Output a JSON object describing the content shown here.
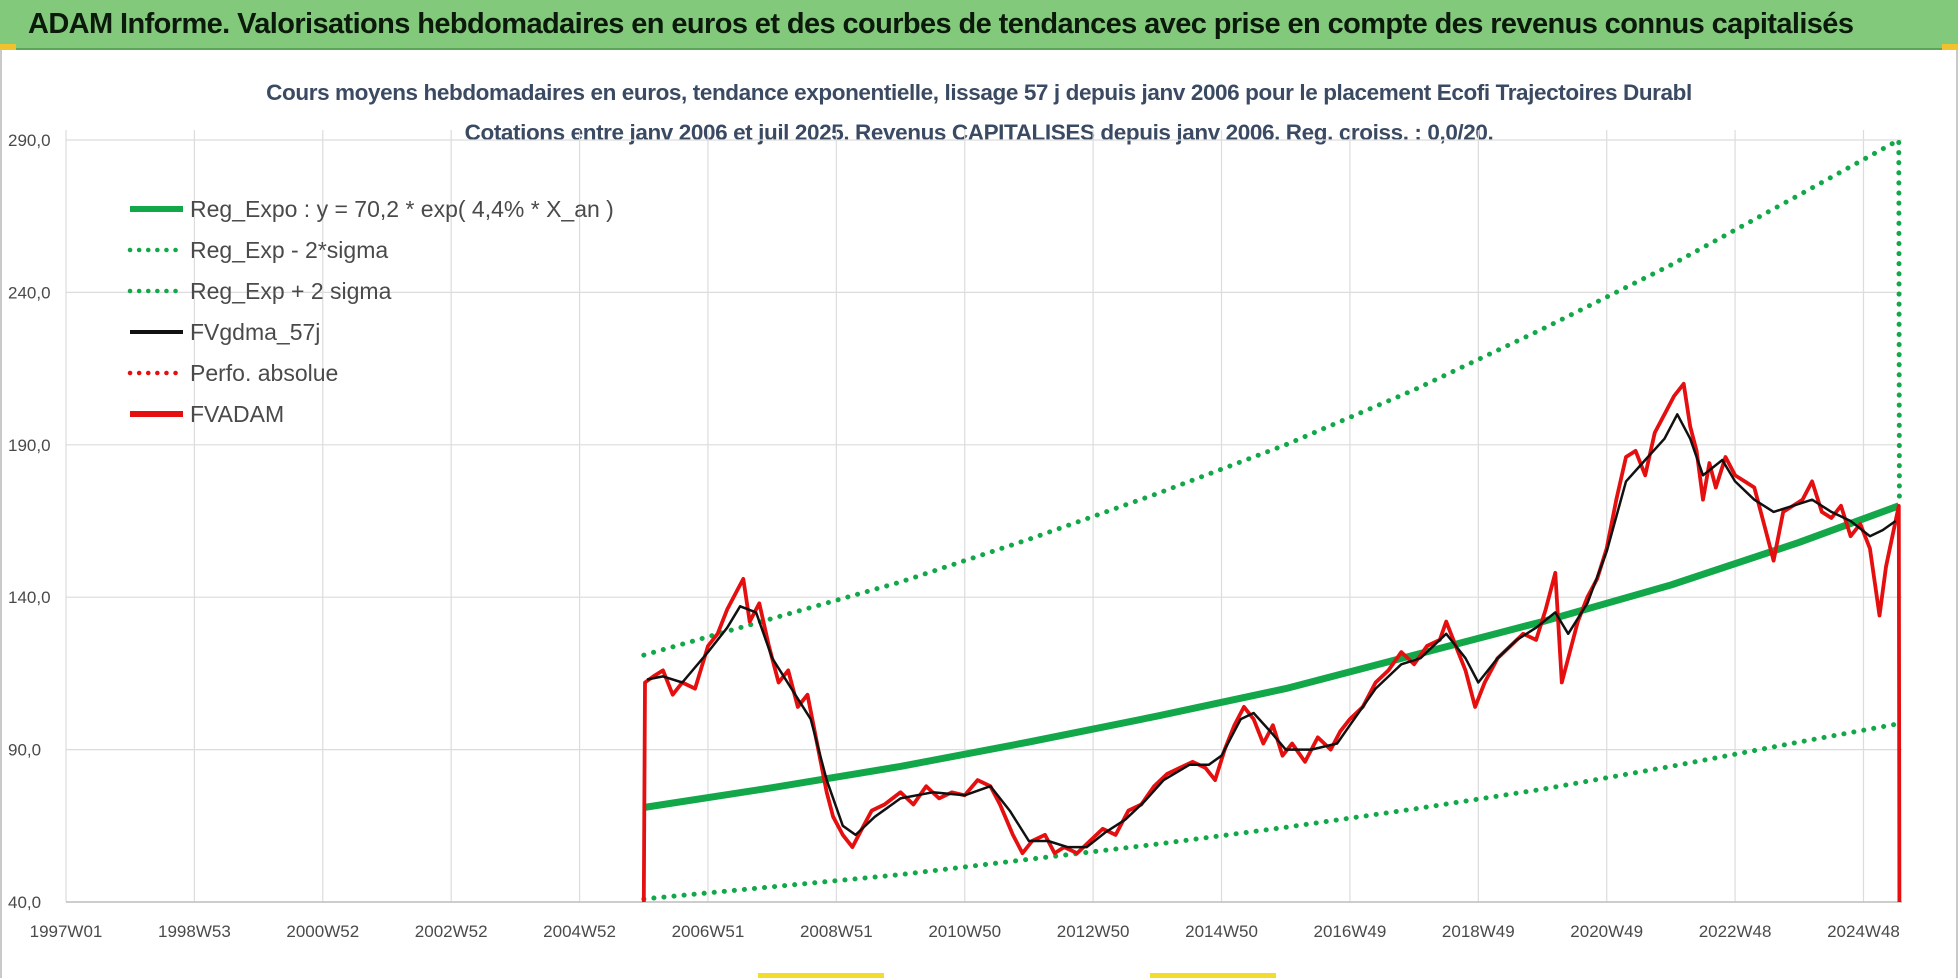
{
  "banner": {
    "title": "ADAM Informe. Valorisations hebdomadaires en euros et des courbes de tendances avec prise en compte des revenus connus capitalisés"
  },
  "colors": {
    "banner_bg": "#83c97c",
    "trend_green": "#12a84a",
    "price_red": "#e60f0f",
    "smooth_black": "#111111",
    "grid": "#dcdcdc"
  },
  "chart_data": {
    "type": "line",
    "title": "Cours moyens hebdomadaires en euros, tendance exponentielle, lissage 57 j depuis janv 2006  pour le placement Ecofi Trajectoires Durabl",
    "subtitle": "Cotations entre janv 2006 et juil 2025. Revenus CAPITALISES depuis janv 2006. Reg. croiss. : 0,0/20.",
    "xlabel": "",
    "ylabel": "",
    "x_range": [
      1997.0,
      2025.6
    ],
    "ylim": [
      40,
      290
    ],
    "y_ticks": [
      "40,0",
      "90,0",
      "140,0",
      "190,0",
      "240,0",
      "290,0"
    ],
    "y_tick_values": [
      40,
      90,
      140,
      190,
      240,
      290
    ],
    "x_tick_labels": [
      "1997W01",
      "1998W53",
      "2000W52",
      "2002W52",
      "2004W52",
      "2006W51",
      "2008W51",
      "2010W50",
      "2012W50",
      "2014W50",
      "2016W49",
      "2018W49",
      "2020W49",
      "2022W48",
      "2024W48"
    ],
    "x_tick_values": [
      1997.0,
      1999.0,
      2001.0,
      2003.0,
      2005.0,
      2007.0,
      2009.0,
      2011.0,
      2013.0,
      2015.0,
      2017.0,
      2019.0,
      2021.0,
      2023.0,
      2025.0
    ],
    "grid": true,
    "legend_position": "top-left",
    "series": [
      {
        "name": "Reg_Expo : y = 70,2 * exp( 4,4% *  X_an )",
        "style": "solid-thick",
        "color": "#12a84a",
        "points": [
          [
            2006.0,
            71
          ],
          [
            2008.0,
            77.5
          ],
          [
            2010.0,
            84.5
          ],
          [
            2012.0,
            92.5
          ],
          [
            2014.0,
            101
          ],
          [
            2016.0,
            110
          ],
          [
            2018.0,
            121
          ],
          [
            2020.0,
            132
          ],
          [
            2022.0,
            144
          ],
          [
            2024.0,
            158
          ],
          [
            2025.55,
            170
          ]
        ]
      },
      {
        "name": "Reg_Exp - 2*sigma",
        "style": "dotted",
        "color": "#12a84a",
        "points": [
          [
            2006.0,
            41
          ],
          [
            2008.0,
            45
          ],
          [
            2010.0,
            49
          ],
          [
            2012.0,
            54
          ],
          [
            2014.0,
            59
          ],
          [
            2016.0,
            64.5
          ],
          [
            2018.0,
            70.5
          ],
          [
            2020.0,
            77
          ],
          [
            2022.0,
            84.5
          ],
          [
            2024.0,
            92.5
          ],
          [
            2025.55,
            98.5
          ]
        ]
      },
      {
        "name": "Reg_Exp + 2 sigma",
        "style": "dotted",
        "color": "#12a84a",
        "points": [
          [
            2006.0,
            121
          ],
          [
            2008.0,
            133
          ],
          [
            2010.0,
            145
          ],
          [
            2012.0,
            159
          ],
          [
            2014.0,
            174
          ],
          [
            2016.0,
            190
          ],
          [
            2018.0,
            208
          ],
          [
            2020.0,
            228
          ],
          [
            2022.0,
            249
          ],
          [
            2024.0,
            272
          ],
          [
            2025.55,
            290
          ],
          [
            2025.56,
            170
          ]
        ]
      },
      {
        "name": "FVgdma_57j",
        "style": "solid",
        "color": "#111111",
        "points": [
          [
            2006.05,
            113
          ],
          [
            2006.3,
            114
          ],
          [
            2006.6,
            112
          ],
          [
            2007.0,
            122
          ],
          [
            2007.3,
            130
          ],
          [
            2007.5,
            137
          ],
          [
            2007.75,
            135
          ],
          [
            2008.0,
            120
          ],
          [
            2008.3,
            110
          ],
          [
            2008.6,
            100
          ],
          [
            2008.85,
            80
          ],
          [
            2009.1,
            65
          ],
          [
            2009.3,
            62
          ],
          [
            2009.6,
            68
          ],
          [
            2010.0,
            74
          ],
          [
            2010.5,
            76
          ],
          [
            2011.0,
            75
          ],
          [
            2011.4,
            78
          ],
          [
            2011.7,
            70
          ],
          [
            2012.0,
            60
          ],
          [
            2012.3,
            60
          ],
          [
            2012.6,
            58
          ],
          [
            2012.9,
            58
          ],
          [
            2013.2,
            63
          ],
          [
            2013.5,
            67
          ],
          [
            2013.8,
            73
          ],
          [
            2014.1,
            80
          ],
          [
            2014.5,
            85
          ],
          [
            2014.8,
            85
          ],
          [
            2015.0,
            88
          ],
          [
            2015.3,
            100
          ],
          [
            2015.5,
            102
          ],
          [
            2015.8,
            95
          ],
          [
            2016.0,
            90
          ],
          [
            2016.4,
            90
          ],
          [
            2016.8,
            92
          ],
          [
            2017.0,
            98
          ],
          [
            2017.4,
            110
          ],
          [
            2017.8,
            118
          ],
          [
            2018.1,
            120
          ],
          [
            2018.5,
            128
          ],
          [
            2018.8,
            120
          ],
          [
            2019.0,
            112
          ],
          [
            2019.3,
            120
          ],
          [
            2019.6,
            126
          ],
          [
            2019.9,
            130
          ],
          [
            2020.2,
            135
          ],
          [
            2020.4,
            128
          ],
          [
            2020.7,
            138
          ],
          [
            2021.0,
            155
          ],
          [
            2021.3,
            178
          ],
          [
            2021.6,
            185
          ],
          [
            2021.9,
            192
          ],
          [
            2022.1,
            200
          ],
          [
            2022.3,
            192
          ],
          [
            2022.5,
            180
          ],
          [
            2022.8,
            185
          ],
          [
            2023.0,
            178
          ],
          [
            2023.3,
            172
          ],
          [
            2023.6,
            168
          ],
          [
            2023.9,
            170
          ],
          [
            2024.2,
            172
          ],
          [
            2024.5,
            168
          ],
          [
            2024.8,
            165
          ],
          [
            2025.1,
            160
          ],
          [
            2025.3,
            162
          ],
          [
            2025.5,
            165
          ]
        ]
      },
      {
        "name": "Perfo. absolue",
        "style": "dotted",
        "color": "#e60f0f",
        "points": []
      },
      {
        "name": "FVADAM",
        "style": "solid-thick",
        "color": "#e60f0f",
        "points": [
          [
            2006.0,
            40
          ],
          [
            2006.02,
            112
          ],
          [
            2006.15,
            114
          ],
          [
            2006.3,
            116
          ],
          [
            2006.45,
            108
          ],
          [
            2006.6,
            112
          ],
          [
            2006.8,
            110
          ],
          [
            2007.0,
            124
          ],
          [
            2007.15,
            128
          ],
          [
            2007.3,
            136
          ],
          [
            2007.45,
            142
          ],
          [
            2007.55,
            146
          ],
          [
            2007.65,
            132
          ],
          [
            2007.8,
            138
          ],
          [
            2007.95,
            124
          ],
          [
            2008.1,
            112
          ],
          [
            2008.25,
            116
          ],
          [
            2008.4,
            104
          ],
          [
            2008.55,
            108
          ],
          [
            2008.7,
            92
          ],
          [
            2008.85,
            76
          ],
          [
            2008.95,
            68
          ],
          [
            2009.1,
            62
          ],
          [
            2009.25,
            58
          ],
          [
            2009.4,
            64
          ],
          [
            2009.55,
            70
          ],
          [
            2009.75,
            72
          ],
          [
            2010.0,
            76
          ],
          [
            2010.2,
            72
          ],
          [
            2010.4,
            78
          ],
          [
            2010.6,
            74
          ],
          [
            2010.8,
            76
          ],
          [
            2011.0,
            75
          ],
          [
            2011.2,
            80
          ],
          [
            2011.4,
            78
          ],
          [
            2011.55,
            72
          ],
          [
            2011.75,
            62
          ],
          [
            2011.9,
            56
          ],
          [
            2012.05,
            60
          ],
          [
            2012.25,
            62
          ],
          [
            2012.4,
            56
          ],
          [
            2012.55,
            58
          ],
          [
            2012.75,
            56
          ],
          [
            2012.95,
            60
          ],
          [
            2013.15,
            64
          ],
          [
            2013.35,
            62
          ],
          [
            2013.55,
            70
          ],
          [
            2013.75,
            72
          ],
          [
            2013.95,
            78
          ],
          [
            2014.15,
            82
          ],
          [
            2014.35,
            84
          ],
          [
            2014.55,
            86
          ],
          [
            2014.75,
            84
          ],
          [
            2014.9,
            80
          ],
          [
            2015.05,
            90
          ],
          [
            2015.2,
            98
          ],
          [
            2015.35,
            104
          ],
          [
            2015.5,
            100
          ],
          [
            2015.65,
            92
          ],
          [
            2015.8,
            98
          ],
          [
            2015.95,
            88
          ],
          [
            2016.1,
            92
          ],
          [
            2016.3,
            86
          ],
          [
            2016.5,
            94
          ],
          [
            2016.7,
            90
          ],
          [
            2016.85,
            96
          ],
          [
            2017.0,
            100
          ],
          [
            2017.2,
            104
          ],
          [
            2017.4,
            112
          ],
          [
            2017.6,
            116
          ],
          [
            2017.8,
            122
          ],
          [
            2018.0,
            118
          ],
          [
            2018.2,
            124
          ],
          [
            2018.4,
            126
          ],
          [
            2018.5,
            132
          ],
          [
            2018.65,
            124
          ],
          [
            2018.8,
            116
          ],
          [
            2018.95,
            104
          ],
          [
            2019.1,
            112
          ],
          [
            2019.3,
            120
          ],
          [
            2019.5,
            124
          ],
          [
            2019.7,
            128
          ],
          [
            2019.9,
            126
          ],
          [
            2020.05,
            136
          ],
          [
            2020.2,
            148
          ],
          [
            2020.3,
            112
          ],
          [
            2020.4,
            120
          ],
          [
            2020.55,
            132
          ],
          [
            2020.7,
            140
          ],
          [
            2020.85,
            146
          ],
          [
            2021.0,
            156
          ],
          [
            2021.15,
            172
          ],
          [
            2021.3,
            186
          ],
          [
            2021.45,
            188
          ],
          [
            2021.6,
            180
          ],
          [
            2021.75,
            194
          ],
          [
            2021.9,
            200
          ],
          [
            2022.05,
            206
          ],
          [
            2022.2,
            210
          ],
          [
            2022.3,
            196
          ],
          [
            2022.4,
            188
          ],
          [
            2022.5,
            172
          ],
          [
            2022.6,
            184
          ],
          [
            2022.7,
            176
          ],
          [
            2022.85,
            186
          ],
          [
            2023.0,
            180
          ],
          [
            2023.15,
            178
          ],
          [
            2023.3,
            176
          ],
          [
            2023.45,
            164
          ],
          [
            2023.6,
            152
          ],
          [
            2023.75,
            168
          ],
          [
            2023.9,
            170
          ],
          [
            2024.05,
            172
          ],
          [
            2024.2,
            178
          ],
          [
            2024.35,
            168
          ],
          [
            2024.5,
            166
          ],
          [
            2024.65,
            170
          ],
          [
            2024.8,
            160
          ],
          [
            2024.95,
            164
          ],
          [
            2025.1,
            156
          ],
          [
            2025.25,
            134
          ],
          [
            2025.35,
            150
          ],
          [
            2025.45,
            160
          ],
          [
            2025.55,
            170
          ],
          [
            2025.56,
            40
          ]
        ]
      }
    ]
  }
}
